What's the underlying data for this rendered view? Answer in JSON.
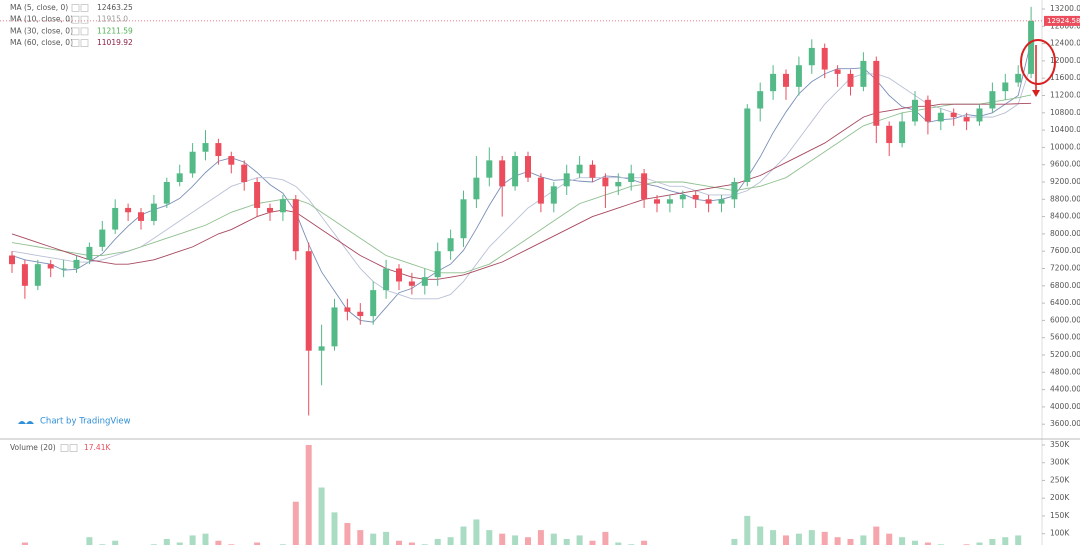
{
  "chart_data": {
    "type": "candlestick",
    "watermark": "Chart by TradingView",
    "up_color": "#53b987",
    "down_color": "#eb4d5c",
    "ylim": [
      3281,
      13408
    ],
    "yticks": [
      {
        "value": 3600,
        "label": "3600.00"
      },
      {
        "value": 4000,
        "label": "4000.00"
      },
      {
        "value": 4400,
        "label": "4400.00"
      },
      {
        "value": 4800,
        "label": "4800.00"
      },
      {
        "value": 5200,
        "label": "5200.00"
      },
      {
        "value": 5600,
        "label": "5600.00"
      },
      {
        "value": 6000,
        "label": "6000.00"
      },
      {
        "value": 6400,
        "label": "6400.00"
      },
      {
        "value": 6800,
        "label": "6800.00"
      },
      {
        "value": 7200,
        "label": "7200.00"
      },
      {
        "value": 7600,
        "label": "7600.00"
      },
      {
        "value": 8000,
        "label": "8000.00"
      },
      {
        "value": 8400,
        "label": "8400.00"
      },
      {
        "value": 8800,
        "label": "8800.00"
      },
      {
        "value": 9200,
        "label": "9200.00"
      },
      {
        "value": 9600,
        "label": "9600.00"
      },
      {
        "value": 10000,
        "label": "10000.00"
      },
      {
        "value": 10400,
        "label": "10400.00"
      },
      {
        "value": 10800,
        "label": "10800.00"
      },
      {
        "value": 11200,
        "label": "11200.00"
      },
      {
        "value": 11600,
        "label": "11600.00"
      },
      {
        "value": 12000,
        "label": "12000.00"
      },
      {
        "value": 12400,
        "label": "12400.00"
      },
      {
        "value": 12800,
        "label": "12800.00"
      },
      {
        "value": 13200,
        "label": "13200.00"
      }
    ],
    "open": [
      7500,
      7300,
      6800,
      7300,
      7200,
      7200,
      7400,
      7700,
      8100,
      8600,
      8500,
      8300,
      8700,
      9200,
      9400,
      9900,
      10100,
      9800,
      9600,
      9200,
      8600,
      8500,
      8800,
      7600,
      5300,
      5400,
      6300,
      6200,
      6100,
      6700,
      7200,
      6900,
      6800,
      7000,
      7600,
      7900,
      8800,
      9300,
      9700,
      9100,
      9800,
      9300,
      8700,
      9100,
      9400,
      9600,
      9300,
      9100,
      9200,
      9400,
      8800,
      8700,
      8800,
      8900,
      8800,
      8700,
      8800,
      9200,
      10900,
      11300,
      11700,
      11400,
      11900,
      12300,
      11800,
      11700,
      11400,
      12000,
      10500,
      10100,
      10600,
      11100,
      10600,
      10800,
      10700,
      10600,
      10900,
      11300,
      11500,
      11700
    ],
    "high": [
      7600,
      7400,
      7400,
      7400,
      7400,
      7500,
      7800,
      8300,
      8800,
      8700,
      8600,
      8900,
      9300,
      9600,
      10100,
      10400,
      10200,
      9900,
      9700,
      9300,
      8700,
      8900,
      8900,
      7800,
      5900,
      6500,
      6500,
      6400,
      6900,
      7400,
      7300,
      7100,
      7200,
      7800,
      8100,
      9000,
      9800,
      10000,
      9800,
      9900,
      9900,
      9400,
      9200,
      9600,
      9800,
      9700,
      9400,
      9400,
      9600,
      9500,
      8900,
      8900,
      9000,
      9000,
      8900,
      8900,
      9300,
      11000,
      11500,
      11900,
      11800,
      12100,
      12500,
      12400,
      11900,
      11800,
      12200,
      12100,
      10600,
      10800,
      11300,
      11200,
      10900,
      10900,
      10800,
      11000,
      11500,
      11700,
      11900,
      13250
    ],
    "low": [
      7100,
      6500,
      6700,
      7000,
      7000,
      7100,
      7300,
      7600,
      8000,
      8300,
      8100,
      8200,
      8600,
      9100,
      9300,
      9700,
      9600,
      9400,
      9000,
      8400,
      8300,
      8300,
      7400,
      3800,
      4500,
      5300,
      6000,
      5900,
      5900,
      6500,
      6700,
      6600,
      6600,
      6800,
      7400,
      7700,
      8600,
      9100,
      8400,
      9000,
      9200,
      8500,
      8500,
      8900,
      9300,
      9200,
      8600,
      8900,
      9000,
      8600,
      8500,
      8500,
      8600,
      8600,
      8500,
      8500,
      8600,
      9100,
      10600,
      11100,
      11100,
      11200,
      11700,
      11600,
      11400,
      11200,
      11300,
      10100,
      9800,
      10000,
      10500,
      10300,
      10400,
      10500,
      10400,
      10500,
      10800,
      11100,
      11400,
      11600
    ],
    "close": [
      7300,
      6800,
      7300,
      7200,
      7200,
      7400,
      7700,
      8100,
      8600,
      8500,
      8300,
      8700,
      9200,
      9400,
      9900,
      10100,
      9800,
      9600,
      9200,
      8600,
      8500,
      8800,
      7600,
      5300,
      5400,
      6300,
      6200,
      6100,
      6700,
      7200,
      6900,
      6800,
      7000,
      7600,
      7900,
      8800,
      9300,
      9700,
      9100,
      9800,
      9300,
      8700,
      9100,
      9400,
      9600,
      9300,
      9100,
      9200,
      9400,
      8800,
      8700,
      8800,
      8900,
      8800,
      8700,
      8800,
      9200,
      10900,
      11300,
      11700,
      11400,
      11900,
      12300,
      11800,
      11700,
      11400,
      12000,
      10500,
      10100,
      10600,
      11100,
      10600,
      10800,
      10700,
      10600,
      10900,
      11300,
      11500,
      11700,
      12924.58
    ],
    "series": [
      {
        "name": "MA (5, close, 0)",
        "color": "#7b8fb8",
        "legend_color": "#555555",
        "values": [
          7500,
          7400,
          7350,
          7300,
          7160,
          7180,
          7360,
          7540,
          7880,
          8180,
          8440,
          8560,
          8660,
          8820,
          9100,
          9420,
          9680,
          9760,
          9660,
          9420,
          9140,
          8940,
          8500,
          7760,
          7120,
          6680,
          6240,
          6000,
          5960,
          6300,
          6640,
          6740,
          6940,
          7140,
          7300,
          7620,
          8120,
          8660,
          9140,
          9340,
          9440,
          9320,
          9240,
          9260,
          9220,
          9200,
          9340,
          9320,
          9260,
          9160,
          9100,
          9000,
          8920,
          8800,
          8760,
          8800,
          8880,
          9300,
          9780,
          10340,
          10820,
          11240,
          11520,
          11700,
          11820,
          11820,
          11840,
          11560,
          11200,
          10940,
          10860,
          10580,
          10640,
          10660,
          10760,
          10720,
          10800,
          11000,
          11200,
          12463.25
        ]
      },
      {
        "name": "MA (10, close, 0)",
        "color": "#b9c0d6",
        "legend_color": "#999999",
        "last_label": "11915.0",
        "values": [
          7600,
          7550,
          7500,
          7450,
          7400,
          7350,
          7350,
          7400,
          7500,
          7600,
          7700,
          7900,
          8100,
          8300,
          8500,
          8700,
          8900,
          9100,
          9200,
          9300,
          9300,
          9250,
          9100,
          8800,
          8400,
          8000,
          7600,
          7200,
          6900,
          6700,
          6600,
          6500,
          6500,
          6500,
          6600,
          6900,
          7300,
          7700,
          8000,
          8300,
          8600,
          8800,
          9000,
          9200,
          9300,
          9300,
          9300,
          9300,
          9300,
          9300,
          9200,
          9100,
          9100,
          9000,
          8900,
          8900,
          8900,
          9000,
          9200,
          9500,
          9800,
          10200,
          10600,
          11000,
          11300,
          11600,
          11700,
          11700,
          11600,
          11400,
          11200,
          11000,
          10900,
          10800,
          10700,
          10700,
          10700,
          10800,
          11000,
          11915
        ]
      },
      {
        "name": "MA (30, close, 0)",
        "color": "#8fbf8f",
        "legend_color": "#4caf50",
        "values": [
          7800,
          7750,
          7700,
          7650,
          7600,
          7550,
          7500,
          7500,
          7550,
          7600,
          7700,
          7800,
          7900,
          8000,
          8100,
          8200,
          8350,
          8500,
          8600,
          8700,
          8750,
          8800,
          8800,
          8700,
          8500,
          8300,
          8100,
          7900,
          7700,
          7500,
          7400,
          7300,
          7200,
          7100,
          7100,
          7100,
          7200,
          7300,
          7500,
          7700,
          7900,
          8100,
          8300,
          8500,
          8700,
          8800,
          8900,
          9000,
          9100,
          9150,
          9200,
          9200,
          9200,
          9150,
          9100,
          9050,
          9000,
          9050,
          9100,
          9200,
          9300,
          9500,
          9700,
          9900,
          10100,
          10300,
          10500,
          10600,
          10700,
          10800,
          10850,
          10900,
          10950,
          11000,
          11000,
          11000,
          11050,
          11100,
          11150,
          11211.59
        ]
      },
      {
        "name": "MA (60, close, 0)",
        "color": "#a8485f",
        "legend_color": "#8e2043",
        "values": [
          8000,
          7900,
          7800,
          7700,
          7600,
          7500,
          7400,
          7350,
          7300,
          7300,
          7350,
          7400,
          7500,
          7600,
          7700,
          7850,
          8000,
          8100,
          8250,
          8400,
          8500,
          8550,
          8500,
          8300,
          8100,
          7900,
          7700,
          7500,
          7350,
          7200,
          7100,
          7000,
          6950,
          6950,
          7000,
          7050,
          7150,
          7250,
          7350,
          7500,
          7650,
          7800,
          7950,
          8100,
          8250,
          8400,
          8500,
          8600,
          8700,
          8800,
          8850,
          8900,
          8950,
          9000,
          9050,
          9100,
          9150,
          9250,
          9350,
          9500,
          9650,
          9800,
          9950,
          10100,
          10300,
          10500,
          10700,
          10800,
          10850,
          10900,
          10950,
          10950,
          11000,
          11000,
          11000,
          11000,
          11000,
          11000,
          11010,
          11019.92
        ]
      }
    ],
    "volume": {
      "name": "Volume (20)",
      "last_label": "17.41K",
      "legend_color": "#eb4d5c",
      "ylim": [
        68000,
        364000
      ],
      "yticks": [
        {
          "value": 100000,
          "label": "100K"
        },
        {
          "value": 150000,
          "label": "150K"
        },
        {
          "value": 200000,
          "label": "200K"
        },
        {
          "value": 250000,
          "label": "250K"
        },
        {
          "value": 300000,
          "label": "300K"
        },
        {
          "value": 350000,
          "label": "350K"
        }
      ],
      "values": [
        40000,
        75000,
        60000,
        45000,
        50000,
        55000,
        90000,
        70000,
        80000,
        60000,
        55000,
        70000,
        85000,
        75000,
        95000,
        100000,
        80000,
        70000,
        65000,
        75000,
        60000,
        70000,
        190000,
        350000,
        230000,
        160000,
        130000,
        110000,
        100000,
        105000,
        80000,
        75000,
        70000,
        85000,
        90000,
        120000,
        140000,
        110000,
        100000,
        95000,
        90000,
        110000,
        100000,
        85000,
        95000,
        80000,
        105000,
        75000,
        70000,
        80000,
        65000,
        60000,
        65000,
        60000,
        55000,
        60000,
        85000,
        150000,
        120000,
        110000,
        95000,
        100000,
        110000,
        105000,
        90000,
        85000,
        95000,
        120000,
        100000,
        90000,
        80000,
        75000,
        70000,
        65000,
        70000,
        75000,
        85000,
        90000,
        95000,
        17410
      ]
    }
  }
}
